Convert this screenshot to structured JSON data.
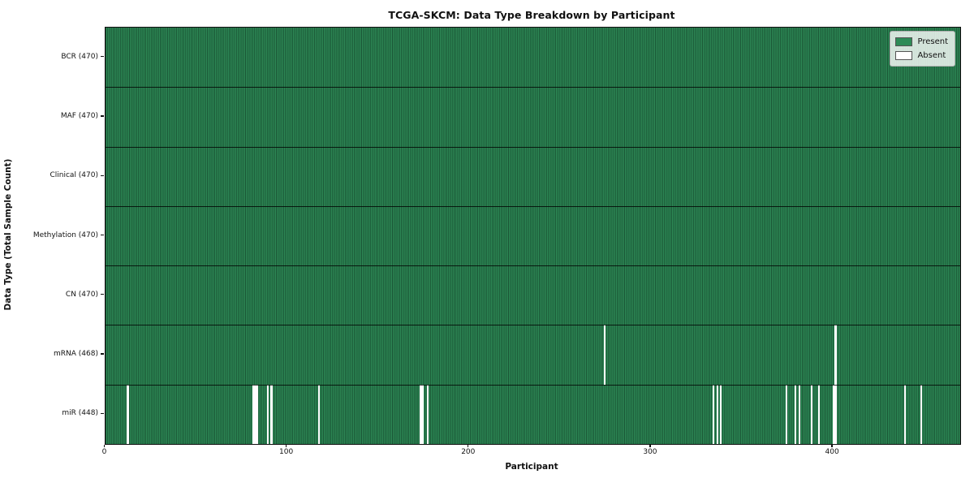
{
  "title": "TCGA-SKCM: Data Type Breakdown by Participant",
  "chart_data": {
    "type": "heatmap",
    "title": "TCGA-SKCM: Data Type Breakdown by Participant",
    "xlabel": "Participant",
    "ylabel": "Data Type (Total Sample Count)",
    "n_participants": 470,
    "x_ticks": [
      0,
      100,
      200,
      300,
      400
    ],
    "legend": {
      "position": "upper right",
      "items": [
        {
          "label": "Present",
          "color": "#2e8b57"
        },
        {
          "label": "Absent",
          "color": "#ffffff"
        }
      ]
    },
    "rows": [
      {
        "name": "BCR",
        "present_count": 470,
        "label": "BCR (470)",
        "absent_participants": []
      },
      {
        "name": "MAF",
        "present_count": 470,
        "label": "MAF (470)",
        "absent_participants": []
      },
      {
        "name": "Clinical",
        "present_count": 470,
        "label": "Clinical (470)",
        "absent_participants": []
      },
      {
        "name": "Methylation",
        "present_count": 470,
        "label": "Methylation (470)",
        "absent_participants": []
      },
      {
        "name": "CN",
        "present_count": 470,
        "label": "CN (470)",
        "absent_participants": []
      },
      {
        "name": "mRNA",
        "present_count": 468,
        "label": "mRNA (468)",
        "absent_participants": [
          274,
          401
        ]
      },
      {
        "name": "miR",
        "present_count": 448,
        "label": "miR (448)",
        "absent_participants": [
          12,
          81,
          82,
          83,
          89,
          91,
          117,
          173,
          174,
          177,
          334,
          336,
          338,
          374,
          379,
          381,
          388,
          392,
          400,
          401,
          439,
          448
        ]
      }
    ],
    "colors": {
      "present": "#2e8b57",
      "absent": "#ffffff",
      "bar_edge": "rgba(5,30,18,0.55)",
      "row_separator": "rgba(0,0,0,0.78)",
      "axis": "#111111",
      "legend_border": "#b0b0b0"
    }
  }
}
